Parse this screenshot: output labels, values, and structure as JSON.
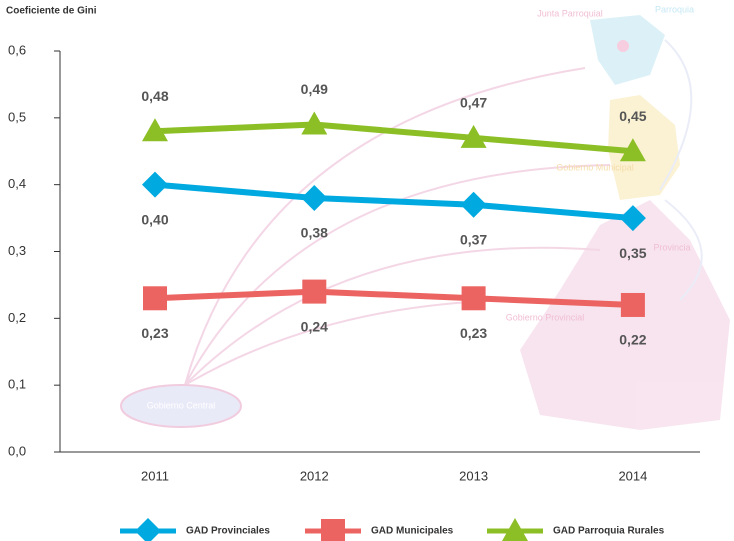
{
  "chart_data": {
    "type": "line",
    "y_label": "Coeficiente de Gini",
    "categories": [
      "2011",
      "2012",
      "2013",
      "2014"
    ],
    "ylim": [
      0,
      0.6
    ],
    "yticks": [
      {
        "value": 0,
        "label": "0,0"
      },
      {
        "value": 0.1,
        "label": "0,1"
      },
      {
        "value": 0.2,
        "label": "0,2"
      },
      {
        "value": 0.3,
        "label": "0,3"
      },
      {
        "value": 0.4,
        "label": "0,4"
      },
      {
        "value": 0.5,
        "label": "0,5"
      },
      {
        "value": 0.6,
        "label": "0,6"
      }
    ],
    "series": [
      {
        "name": "GAD Provinciales",
        "color": "#00a9e0",
        "marker": "diamond",
        "values": [
          0.4,
          0.38,
          0.37,
          0.35
        ],
        "value_labels": [
          "0,40",
          "0,38",
          "0,37",
          "0,35"
        ]
      },
      {
        "name": "GAD Municipales",
        "color": "#ec6461",
        "marker": "square",
        "values": [
          0.23,
          0.24,
          0.23,
          0.22
        ],
        "value_labels": [
          "0,23",
          "0,24",
          "0,23",
          "0,22"
        ]
      },
      {
        "name": "GAD Parroquia Rurales",
        "color": "#8cbf26",
        "marker": "triangle",
        "values": [
          0.48,
          0.49,
          0.47,
          0.45
        ],
        "value_labels": [
          "0,48",
          "0,49",
          "0,47",
          "0,45"
        ]
      }
    ],
    "annotations": [
      "Junta Parroquial",
      "Parroquia",
      "Gobierno Municipal",
      "Provincia",
      "Gobierno Provincial",
      "Gobierno Central"
    ],
    "legend": "bottom"
  }
}
